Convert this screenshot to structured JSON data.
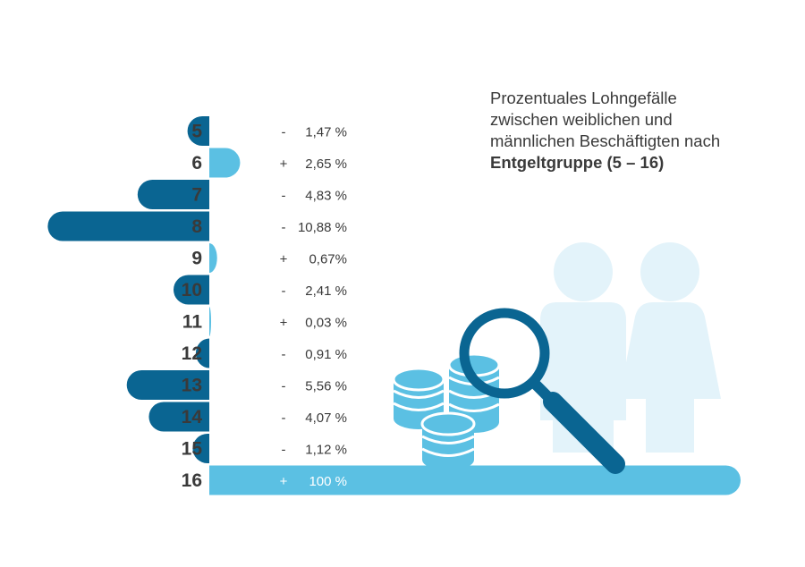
{
  "title": {
    "line1": "Prozentuales Lohngefälle",
    "line2": "zwischen weiblichen und",
    "line3": "männlichen Beschäftigten nach",
    "line4": "Entgeltgruppe (5 – 16)"
  },
  "colors": {
    "negative": "#0a6592",
    "positive": "#5bc0e3",
    "label": "#3a3a3a",
    "person_silhouette": "#e3f3fa",
    "coin_dark_rim": "#2e9fcc"
  },
  "icons": [
    "coins-icon",
    "magnifier-icon",
    "man-icon",
    "woman-icon"
  ],
  "chart_data": {
    "type": "bar",
    "orientation": "horizontal-diverging",
    "categories": [
      "5",
      "6",
      "7",
      "8",
      "9",
      "10",
      "11",
      "12",
      "13",
      "14",
      "15",
      "16"
    ],
    "values": [
      -1.47,
      2.65,
      -4.83,
      -10.88,
      0.67,
      -2.41,
      0.03,
      -0.91,
      -5.56,
      -4.07,
      -1.12,
      100
    ],
    "value_labels": [
      {
        "sign": "-",
        "text": "1,47 %"
      },
      {
        "sign": "+",
        "text": "2,65 %"
      },
      {
        "sign": "-",
        "text": "4,83 %"
      },
      {
        "sign": "-",
        "text": "10,88 %"
      },
      {
        "sign": "+",
        "text": "0,67%"
      },
      {
        "sign": "-",
        "text": "2,41 %"
      },
      {
        "sign": "+",
        "text": "0,03 %"
      },
      {
        "sign": "-",
        "text": "0,91 %"
      },
      {
        "sign": "-",
        "text": "5,56 %"
      },
      {
        "sign": "-",
        "text": "4,07 %"
      },
      {
        "sign": "-",
        "text": "1,12 %"
      },
      {
        "sign": "+",
        "text": "100 %"
      }
    ],
    "negative_color": "#0a6592",
    "positive_color": "#5bc0e3"
  }
}
